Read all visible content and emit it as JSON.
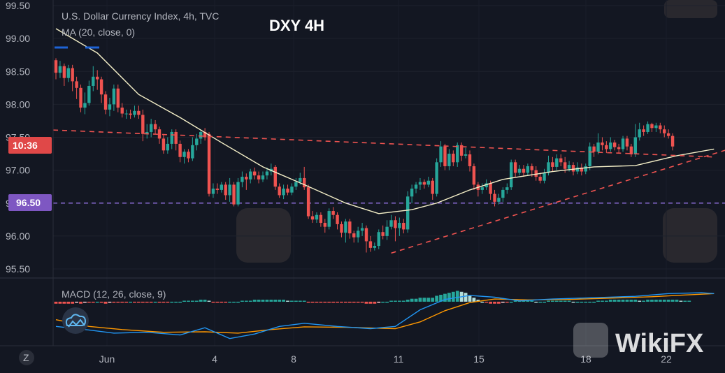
{
  "legend": {
    "symbol": "U.S. Dollar Currency Index, 4h, TVC",
    "ma": "MA (20, close, 0)",
    "macd": "MACD (12, 26, close, 9)"
  },
  "overlay_title": "DXY 4H",
  "badges": {
    "time": "10:36",
    "level": "96.50"
  },
  "z_button": "Z",
  "watermark": "WikiFX",
  "colors": {
    "background": "#131722",
    "up": "#26a69a",
    "down": "#ef5350",
    "ma": "#f5f0c8",
    "macd": "#2196f3",
    "signal": "#ff9800",
    "level_line": "#8c6cd9",
    "trend": "#ef5350",
    "time_badge": "#e04848",
    "level_badge": "#7e57c2"
  },
  "chart_data": {
    "type": "candlestick",
    "price_axis": {
      "ticks": [
        "99.50",
        "99.00",
        "98.50",
        "98.00",
        "97.50",
        "97.00",
        "96.50",
        "96.00",
        "95.50"
      ],
      "range": [
        95.3,
        99.5
      ]
    },
    "time_axis": {
      "labels": [
        "Jun",
        "4",
        "8",
        "11",
        "15",
        "18",
        "22"
      ]
    },
    "horizontal_level": 96.5,
    "trendlines": [
      {
        "style": "dashed",
        "from": [
          0,
          97.61
        ],
        "to": [
          159,
          97.2
        ]
      },
      {
        "style": "dashed",
        "from": [
          81,
          95.74
        ],
        "to": [
          159,
          97.25
        ]
      }
    ],
    "candles": [
      [
        98.67,
        98.48,
        98.7,
        98.38
      ],
      [
        98.48,
        98.58,
        98.66,
        98.4
      ],
      [
        98.58,
        98.4,
        98.62,
        98.28
      ],
      [
        98.4,
        98.55,
        98.6,
        98.34
      ],
      [
        98.55,
        98.35,
        98.6,
        98.2
      ],
      [
        98.35,
        98.25,
        98.42,
        98.08
      ],
      [
        98.25,
        97.95,
        98.3,
        97.88
      ],
      [
        97.95,
        98.02,
        98.18,
        97.85
      ],
      [
        98.02,
        98.28,
        98.36,
        97.98
      ],
      [
        98.28,
        98.42,
        98.58,
        98.2
      ],
      [
        98.42,
        98.38,
        98.52,
        98.22
      ],
      [
        98.38,
        98.15,
        98.42,
        98.02
      ],
      [
        98.15,
        97.92,
        98.2,
        97.85
      ],
      [
        97.92,
        98.0,
        98.1,
        97.82
      ],
      [
        98.0,
        98.24,
        98.3,
        97.9
      ],
      [
        98.24,
        97.95,
        98.3,
        97.88
      ],
      [
        97.95,
        97.86,
        98.02,
        97.8
      ],
      [
        97.86,
        97.86,
        97.92,
        97.78
      ],
      [
        97.86,
        97.84,
        97.92,
        97.78
      ],
      [
        97.84,
        97.9,
        97.98,
        97.8
      ],
      [
        97.9,
        97.84,
        97.98,
        97.78
      ],
      [
        97.84,
        97.55,
        97.92,
        97.44
      ],
      [
        97.55,
        97.58,
        97.7,
        97.48
      ],
      [
        97.58,
        97.7,
        97.78,
        97.5
      ],
      [
        97.7,
        97.62,
        97.76,
        97.55
      ],
      [
        97.62,
        97.48,
        97.66,
        97.4
      ],
      [
        97.48,
        97.3,
        97.55,
        97.25
      ],
      [
        97.3,
        97.4,
        97.5,
        97.25
      ],
      [
        97.4,
        97.58,
        97.62,
        97.32
      ],
      [
        97.58,
        97.4,
        97.62,
        97.3
      ],
      [
        97.4,
        97.2,
        97.45,
        97.12
      ],
      [
        97.2,
        97.28,
        97.32,
        97.1
      ],
      [
        97.28,
        97.18,
        97.32,
        97.12
      ],
      [
        97.18,
        97.38,
        97.5,
        97.14
      ],
      [
        97.38,
        97.48,
        97.55,
        97.3
      ],
      [
        97.48,
        97.58,
        97.62,
        97.4
      ],
      [
        97.58,
        97.5,
        97.64,
        97.45
      ],
      [
        97.55,
        96.64,
        97.58,
        96.6
      ],
      [
        96.64,
        96.72,
        96.8,
        96.58
      ],
      [
        96.72,
        96.7,
        96.8,
        96.64
      ],
      [
        96.7,
        96.78,
        96.82,
        96.66
      ],
      [
        96.78,
        96.62,
        96.82,
        96.55
      ],
      [
        96.62,
        96.78,
        96.88,
        96.52
      ],
      [
        96.78,
        96.48,
        96.82,
        96.45
      ],
      [
        96.48,
        96.82,
        96.88,
        96.45
      ],
      [
        96.82,
        96.9,
        96.98,
        96.74
      ],
      [
        96.9,
        96.86,
        96.95,
        96.7
      ],
      [
        96.86,
        96.98,
        97.02,
        96.8
      ],
      [
        96.98,
        96.92,
        97.04,
        96.86
      ],
      [
        96.92,
        96.86,
        96.98,
        96.8
      ],
      [
        96.86,
        96.92,
        96.98,
        96.82
      ],
      [
        96.92,
        96.98,
        97.04,
        96.86
      ],
      [
        96.98,
        97.02,
        97.1,
        96.92
      ],
      [
        97.05,
        96.75,
        97.08,
        96.7
      ],
      [
        96.75,
        96.62,
        96.8,
        96.58
      ],
      [
        96.62,
        96.72,
        96.78,
        96.56
      ],
      [
        96.72,
        96.66,
        96.78,
        96.62
      ],
      [
        96.66,
        96.75,
        96.8,
        96.62
      ],
      [
        96.75,
        96.82,
        96.88,
        96.7
      ],
      [
        96.82,
        96.88,
        96.96,
        96.78
      ],
      [
        96.88,
        96.74,
        97.05,
        96.7
      ],
      [
        96.74,
        96.3,
        96.78,
        96.26
      ],
      [
        96.3,
        96.25,
        96.38,
        96.2
      ],
      [
        96.25,
        96.32,
        96.36,
        96.2
      ],
      [
        96.32,
        96.2,
        96.36,
        96.14
      ],
      [
        96.2,
        96.14,
        96.26,
        96.05
      ],
      [
        96.14,
        96.38,
        96.42,
        96.1
      ],
      [
        96.38,
        96.32,
        96.44,
        96.26
      ],
      [
        96.32,
        96.18,
        96.36,
        96.1
      ],
      [
        96.18,
        96.05,
        96.22,
        95.98
      ],
      [
        96.05,
        96.22,
        96.26,
        95.9
      ],
      [
        96.22,
        96.04,
        96.26,
        95.96
      ],
      [
        96.04,
        95.98,
        96.08,
        95.9
      ],
      [
        95.98,
        96.08,
        96.14,
        95.9
      ],
      [
        96.08,
        96.12,
        96.2,
        96.0
      ],
      [
        96.12,
        95.92,
        96.16,
        95.75
      ],
      [
        95.92,
        95.82,
        96.0,
        95.76
      ],
      [
        95.82,
        95.85,
        95.9,
        95.78
      ],
      [
        95.85,
        96.06,
        96.1,
        95.8
      ],
      [
        96.06,
        96.0,
        96.16,
        95.95
      ],
      [
        96.0,
        96.14,
        96.24,
        95.94
      ],
      [
        96.14,
        96.24,
        96.32,
        96.1
      ],
      [
        96.24,
        96.12,
        96.3,
        95.92
      ],
      [
        96.12,
        96.2,
        96.28,
        96.0
      ],
      [
        96.2,
        96.1,
        96.26,
        96.04
      ],
      [
        96.1,
        96.6,
        96.68,
        96.05
      ],
      [
        96.6,
        96.72,
        96.78,
        96.5
      ],
      [
        96.72,
        96.78,
        96.82,
        96.65
      ],
      [
        96.78,
        96.82,
        96.88,
        96.7
      ],
      [
        96.82,
        96.78,
        96.86,
        96.72
      ],
      [
        96.78,
        96.84,
        96.9,
        96.74
      ],
      [
        96.84,
        96.64,
        96.88,
        96.55
      ],
      [
        96.64,
        97.12,
        97.18,
        96.6
      ],
      [
        97.12,
        97.36,
        97.44,
        97.05
      ],
      [
        97.36,
        97.06,
        97.4,
        97.0
      ],
      [
        97.06,
        97.25,
        97.32,
        97.0
      ],
      [
        97.25,
        97.12,
        97.3,
        97.06
      ],
      [
        97.12,
        97.38,
        97.42,
        97.05
      ],
      [
        97.38,
        97.22,
        97.42,
        97.14
      ],
      [
        97.22,
        97.24,
        97.34,
        97.18
      ],
      [
        97.24,
        97.06,
        97.3,
        96.98
      ],
      [
        97.06,
        96.78,
        97.1,
        96.7
      ],
      [
        96.78,
        96.7,
        96.82,
        96.6
      ],
      [
        96.7,
        96.74,
        96.8,
        96.64
      ],
      [
        96.74,
        96.8,
        96.86,
        96.7
      ],
      [
        96.8,
        96.64,
        96.84,
        96.55
      ],
      [
        96.64,
        96.52,
        96.7,
        96.45
      ],
      [
        96.52,
        96.58,
        96.64,
        96.48
      ],
      [
        96.58,
        96.7,
        96.74,
        96.52
      ],
      [
        96.7,
        96.74,
        96.8,
        96.64
      ],
      [
        96.74,
        97.12,
        97.16,
        96.7
      ],
      [
        97.12,
        96.96,
        97.16,
        96.9
      ],
      [
        96.96,
        97.02,
        97.08,
        96.92
      ],
      [
        97.02,
        96.96,
        97.08,
        96.9
      ],
      [
        96.96,
        97.06,
        97.1,
        96.92
      ],
      [
        97.06,
        97.0,
        97.1,
        96.9
      ],
      [
        97.0,
        96.9,
        97.06,
        96.84
      ],
      [
        96.9,
        96.84,
        96.96,
        96.8
      ],
      [
        96.84,
        96.96,
        97.02,
        96.8
      ],
      [
        96.96,
        97.12,
        97.22,
        96.92
      ],
      [
        97.12,
        97.05,
        97.2,
        96.98
      ],
      [
        97.05,
        97.18,
        97.24,
        97.0
      ],
      [
        97.18,
        97.12,
        97.24,
        97.06
      ],
      [
        97.12,
        97.02,
        97.2,
        96.96
      ],
      [
        97.02,
        97.08,
        97.14,
        96.98
      ],
      [
        97.08,
        96.98,
        97.12,
        96.92
      ],
      [
        96.98,
        97.04,
        97.12,
        96.94
      ],
      [
        97.04,
        96.98,
        97.1,
        96.92
      ],
      [
        96.98,
        97.06,
        97.1,
        96.94
      ],
      [
        97.06,
        97.36,
        97.42,
        97.0
      ],
      [
        97.36,
        97.28,
        97.4,
        97.2
      ],
      [
        97.28,
        97.42,
        97.56,
        97.24
      ],
      [
        97.42,
        97.38,
        97.5,
        97.3
      ],
      [
        97.38,
        97.32,
        97.44,
        97.26
      ],
      [
        97.32,
        97.42,
        97.5,
        97.28
      ],
      [
        97.42,
        97.35,
        97.46,
        97.3
      ],
      [
        97.35,
        97.32,
        97.4,
        97.26
      ],
      [
        97.32,
        97.48,
        97.52,
        97.28
      ],
      [
        97.48,
        97.36,
        97.52,
        97.3
      ],
      [
        97.36,
        97.24,
        97.4,
        97.2
      ],
      [
        97.24,
        97.5,
        97.7,
        97.2
      ],
      [
        97.5,
        97.62,
        97.72,
        97.45
      ],
      [
        97.62,
        97.58,
        97.68,
        97.52
      ],
      [
        97.58,
        97.7,
        97.74,
        97.55
      ],
      [
        97.7,
        97.64,
        97.72,
        97.58
      ],
      [
        97.64,
        97.68,
        97.72,
        97.58
      ],
      [
        97.68,
        97.62,
        97.72,
        97.56
      ],
      [
        97.62,
        97.56,
        97.68,
        97.5
      ],
      [
        97.56,
        97.52,
        97.62,
        97.48
      ],
      [
        97.52,
        97.36,
        97.56,
        97.3
      ]
    ],
    "ma": [
      [
        0,
        99.15
      ],
      [
        10,
        98.78
      ],
      [
        20,
        98.15
      ],
      [
        30,
        97.8
      ],
      [
        40,
        97.42
      ],
      [
        50,
        97.05
      ],
      [
        60,
        96.78
      ],
      [
        70,
        96.5
      ],
      [
        78,
        96.34
      ],
      [
        86,
        96.4
      ],
      [
        92,
        96.5
      ],
      [
        100,
        96.7
      ],
      [
        108,
        96.86
      ],
      [
        120,
        96.98
      ],
      [
        130,
        97.05
      ],
      [
        140,
        97.07
      ],
      [
        150,
        97.22
      ],
      [
        159,
        97.32
      ]
    ],
    "macd_panel": {
      "title": "MACD (12, 26, close, 9)",
      "histogram": [
        -0.02,
        -0.02,
        -0.02,
        -0.02,
        -0.02,
        -0.01,
        -0.02,
        -0.01,
        -0.01,
        -0.01,
        0.0,
        -0.01,
        -0.02,
        -0.01,
        -0.01,
        -0.01,
        -0.01,
        -0.01,
        0.0,
        -0.01,
        -0.01,
        -0.01,
        -0.01,
        -0.01,
        0.0,
        -0.01,
        -0.01,
        -0.01,
        0.0,
        0.0,
        0.0,
        0.01,
        0.01,
        0.01,
        0.01,
        0.02,
        0.02,
        0.01,
        -0.01,
        -0.01,
        -0.01,
        -0.01,
        0.0,
        0.0,
        0.0,
        0.01,
        0.01,
        0.01,
        0.02,
        0.02,
        0.02,
        0.02,
        0.02,
        0.02,
        0.02,
        0.02,
        0.01,
        0.01,
        0.01,
        0.01,
        0.01,
        -0.01,
        -0.01,
        -0.01,
        -0.01,
        -0.01,
        -0.01,
        -0.01,
        -0.01,
        -0.01,
        -0.01,
        -0.01,
        -0.01,
        -0.01,
        -0.01,
        -0.02,
        -0.02,
        -0.02,
        -0.01,
        0.0,
        0.0,
        0.01,
        0.01,
        0.01,
        0.01,
        0.02,
        0.03,
        0.03,
        0.04,
        0.04,
        0.04,
        0.04,
        0.06,
        0.07,
        0.08,
        0.09,
        0.1,
        0.11,
        0.1,
        0.09,
        0.06,
        0.04,
        0.02,
        0.0,
        -0.01,
        -0.02,
        -0.02,
        -0.02,
        -0.01,
        -0.01,
        0.0,
        0.01,
        0.01,
        0.01,
        0.01,
        0.01,
        0.0,
        0.0,
        0.0,
        0.01,
        0.01,
        0.01,
        0.01,
        0.01,
        0.01,
        0.0,
        0.0,
        0.0,
        0.0,
        0.0,
        0.0,
        0.01,
        0.01,
        0.01,
        0.02,
        0.02,
        0.02,
        0.02,
        0.02,
        0.02,
        0.02,
        0.01,
        0.01,
        0.02,
        0.02,
        0.02,
        0.02,
        0.02,
        0.02,
        0.02,
        0.02,
        0.01,
        0.01,
        0.01
      ],
      "macd": [
        [
          0,
          -0.55
        ],
        [
          8,
          -0.63
        ],
        [
          14,
          -0.7
        ],
        [
          22,
          -0.68
        ],
        [
          30,
          -0.74
        ],
        [
          36,
          -0.58
        ],
        [
          42,
          -0.82
        ],
        [
          48,
          -0.72
        ],
        [
          54,
          -0.55
        ],
        [
          60,
          -0.48
        ],
        [
          68,
          -0.55
        ],
        [
          76,
          -0.6
        ],
        [
          82,
          -0.55
        ],
        [
          88,
          -0.18
        ],
        [
          94,
          0.05
        ],
        [
          100,
          0.14
        ],
        [
          106,
          0.1
        ],
        [
          112,
          0.02
        ],
        [
          120,
          0.06
        ],
        [
          130,
          0.09
        ],
        [
          140,
          0.12
        ],
        [
          148,
          0.18
        ],
        [
          156,
          0.2
        ],
        [
          159,
          0.18
        ]
      ],
      "signal": [
        [
          0,
          -0.4
        ],
        [
          8,
          -0.55
        ],
        [
          16,
          -0.62
        ],
        [
          26,
          -0.68
        ],
        [
          36,
          -0.67
        ],
        [
          44,
          -0.7
        ],
        [
          52,
          -0.62
        ],
        [
          60,
          -0.56
        ],
        [
          70,
          -0.57
        ],
        [
          82,
          -0.6
        ],
        [
          88,
          -0.45
        ],
        [
          94,
          -0.2
        ],
        [
          100,
          -0.02
        ],
        [
          106,
          0.06
        ],
        [
          114,
          0.04
        ],
        [
          124,
          0.05
        ],
        [
          134,
          0.08
        ],
        [
          144,
          0.11
        ],
        [
          152,
          0.15
        ],
        [
          159,
          0.18
        ]
      ],
      "range": [
        -0.95,
        0.45
      ]
    }
  }
}
